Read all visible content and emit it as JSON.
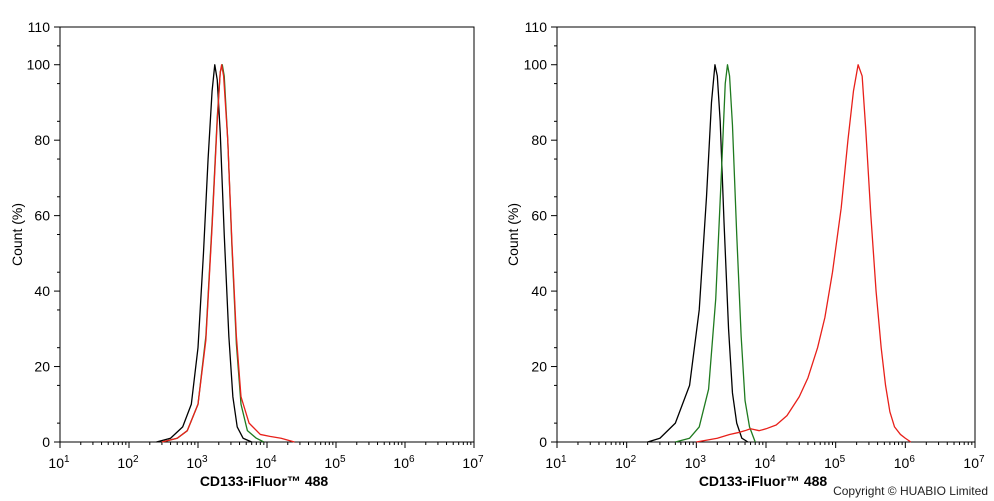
{
  "copyright": "Copyright © HUABIO Limited",
  "colors": {
    "axis": "#000000",
    "isotype": "#000000",
    "unstained": "#1f7a1f",
    "stained": "#e8201a"
  },
  "chart_data": [
    {
      "type": "line",
      "panel": "left",
      "xlabel": "CD133-iFluor™ 488",
      "ylabel": "Count  (%)",
      "x_scale": "log",
      "xlim": [
        10,
        10000000
      ],
      "ylim": [
        0,
        110
      ],
      "x_tick_labels": [
        {
          "base": "10",
          "exp": "1"
        },
        {
          "base": "10",
          "exp": "2"
        },
        {
          "base": "10",
          "exp": "3"
        },
        {
          "base": "10",
          "exp": "4"
        },
        {
          "base": "10",
          "exp": "5"
        },
        {
          "base": "10",
          "exp": "6"
        },
        {
          "base": "10",
          "exp": "7"
        }
      ],
      "y_ticks": [
        "0",
        "20",
        "40",
        "60",
        "80",
        "100",
        "110"
      ],
      "grid": false,
      "legend": "none",
      "series": [
        {
          "color_key": "isotype",
          "x": [
            250,
            400,
            600,
            800,
            1000,
            1200,
            1400,
            1600,
            1750,
            1900,
            2100,
            2400,
            2800,
            3200,
            3700,
            4500,
            6000
          ],
          "y": [
            0,
            1,
            4,
            10,
            25,
            50,
            75,
            93,
            100,
            96,
            82,
            55,
            28,
            12,
            4,
            1,
            0
          ]
        },
        {
          "color_key": "unstained",
          "x": [
            300,
            500,
            700,
            1000,
            1300,
            1600,
            1900,
            2100,
            2250,
            2400,
            2700,
            3100,
            3600,
            4200,
            5200,
            7000,
            9000
          ],
          "y": [
            0,
            1,
            3,
            10,
            28,
            58,
            86,
            98,
            100,
            97,
            80,
            52,
            26,
            10,
            3,
            1,
            0
          ]
        },
        {
          "color_key": "stained",
          "x": [
            300,
            500,
            700,
            1000,
            1300,
            1600,
            1900,
            2100,
            2200,
            2350,
            2700,
            3100,
            3600,
            4200,
            5500,
            8000,
            11000,
            16000,
            25000
          ],
          "y": [
            0,
            1,
            3,
            10,
            27,
            57,
            85,
            98,
            100,
            97,
            80,
            53,
            28,
            12,
            5,
            2,
            1.5,
            1,
            0
          ]
        }
      ]
    },
    {
      "type": "line",
      "panel": "right",
      "xlabel": "CD133-iFluor™ 488",
      "ylabel": "Count  (%)",
      "x_scale": "log",
      "xlim": [
        10,
        10000000
      ],
      "ylim": [
        0,
        110
      ],
      "x_tick_labels": [
        {
          "base": "10",
          "exp": "1"
        },
        {
          "base": "10",
          "exp": "2"
        },
        {
          "base": "10",
          "exp": "3"
        },
        {
          "base": "10",
          "exp": "4"
        },
        {
          "base": "10",
          "exp": "5"
        },
        {
          "base": "10",
          "exp": "6"
        },
        {
          "base": "10",
          "exp": "7"
        }
      ],
      "y_ticks": [
        "0",
        "20",
        "40",
        "60",
        "80",
        "100",
        "110"
      ],
      "grid": false,
      "legend": "none",
      "series": [
        {
          "color_key": "isotype",
          "x": [
            200,
            300,
            500,
            800,
            1100,
            1400,
            1650,
            1850,
            2000,
            2200,
            2500,
            2900,
            3300,
            3800,
            4500,
            5500
          ],
          "y": [
            0,
            1,
            5,
            15,
            35,
            65,
            90,
            100,
            97,
            85,
            58,
            30,
            13,
            5,
            1,
            0
          ]
        },
        {
          "color_key": "unstained",
          "x": [
            500,
            800,
            1100,
            1500,
            1900,
            2300,
            2600,
            2800,
            3000,
            3300,
            3800,
            4400,
            5000,
            5800,
            7000
          ],
          "y": [
            0,
            1,
            4,
            14,
            38,
            72,
            95,
            100,
            97,
            84,
            55,
            28,
            11,
            4,
            0
          ]
        },
        {
          "color_key": "stained",
          "x": [
            1000,
            2000,
            3000,
            4000,
            5000,
            6000,
            8000,
            10000,
            14000,
            20000,
            30000,
            40000,
            55000,
            70000,
            90000,
            120000,
            150000,
            180000,
            210000,
            240000,
            270000,
            320000,
            380000,
            450000,
            520000,
            600000,
            700000,
            850000,
            1000000,
            1200000
          ],
          "y": [
            0,
            1,
            2,
            2.5,
            3,
            3.5,
            3,
            3.5,
            4.5,
            7,
            12,
            17,
            25,
            33,
            45,
            62,
            80,
            93,
            100,
            97,
            83,
            60,
            40,
            25,
            15,
            8,
            4,
            2,
            1,
            0
          ]
        }
      ]
    }
  ]
}
